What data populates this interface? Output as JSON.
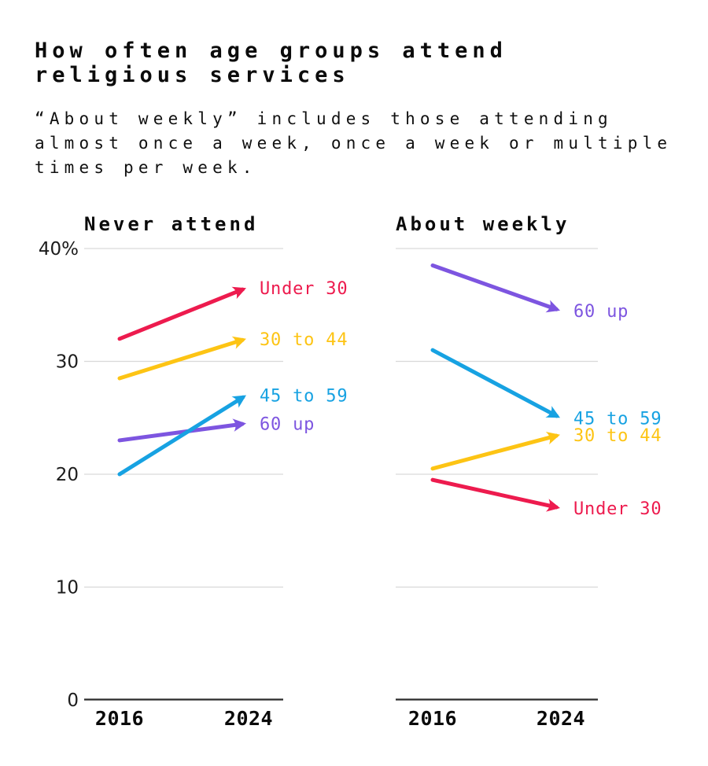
{
  "header": {
    "title": "How often age groups attend\nreligious services",
    "subtitle": "“About weekly” includes those attending\nalmost once a week, once a week or multiple\ntimes per week."
  },
  "palette": {
    "under_30": "#ed1b4e",
    "30_to_44": "#fdc414",
    "45_to_59": "#17a2e2",
    "60_up": "#7d55e0",
    "gridline": "#d9d9d9",
    "axis": "#2b2b2b",
    "text": "#0b0b0b"
  },
  "chart_data": [
    {
      "type": "line",
      "subtype": "slope-arrows",
      "title": "Never attend",
      "x": [
        "2016",
        "2024"
      ],
      "ylim": [
        0,
        40
      ],
      "unit": "percent",
      "grid": true,
      "gridlines": [
        40,
        30,
        20,
        10
      ],
      "yticks": [
        {
          "value": 40,
          "label": "40%"
        },
        {
          "value": 30,
          "label": "30"
        },
        {
          "value": 20,
          "label": "20"
        },
        {
          "value": 10,
          "label": "10"
        },
        {
          "value": 0,
          "label": "0"
        }
      ],
      "series": [
        {
          "name": "Under 30",
          "color": "#ed1b4e",
          "values": [
            32,
            36.5
          ]
        },
        {
          "name": "30 to 44",
          "color": "#fdc414",
          "values": [
            28.5,
            32
          ]
        },
        {
          "name": "60 up",
          "color": "#7d55e0",
          "values": [
            23,
            24.5
          ]
        },
        {
          "name": "45 to 59",
          "color": "#17a2e2",
          "values": [
            20,
            27
          ]
        }
      ]
    },
    {
      "type": "line",
      "subtype": "slope-arrows",
      "title": "About weekly",
      "x": [
        "2016",
        "2024"
      ],
      "ylim": [
        0,
        40
      ],
      "unit": "percent",
      "grid": true,
      "gridlines": [
        40,
        30,
        20,
        10
      ],
      "yticks": [],
      "series": [
        {
          "name": "60 up",
          "color": "#7d55e0",
          "values": [
            38.5,
            34.5
          ]
        },
        {
          "name": "45 to 59",
          "color": "#17a2e2",
          "values": [
            31,
            25
          ]
        },
        {
          "name": "30 to 44",
          "color": "#fdc414",
          "values": [
            20.5,
            23.5
          ]
        },
        {
          "name": "Under 30",
          "color": "#ed1b4e",
          "values": [
            19.5,
            17
          ]
        }
      ]
    }
  ]
}
